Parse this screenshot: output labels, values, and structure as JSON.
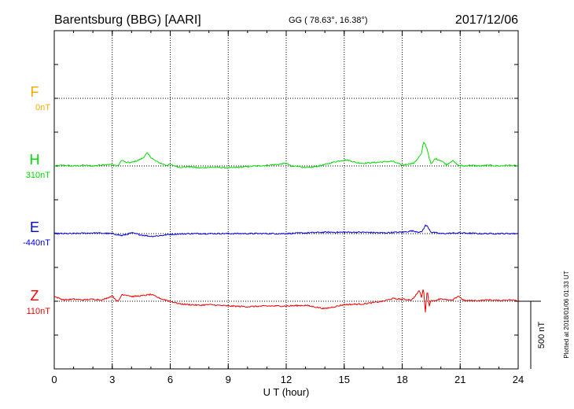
{
  "header": {
    "station": "Barentsburg (BBG)  [AARI]",
    "coords": "GG ( 78.63°,  16.38°)",
    "date": "2017/12/06"
  },
  "side_note": "Plotted at 2018/01/06 01:33 UT",
  "scale_label": "500 nT",
  "colors": {
    "F": "#ffa500",
    "H": "#00dd00",
    "E": "#0000dd",
    "Z": "#ee0000",
    "grid": "#000000"
  },
  "chart_data": {
    "type": "line",
    "title": "Barentsburg (BBG)  [AARI]",
    "xlabel": "U T (hour)",
    "ylabel": "",
    "xlim": [
      0,
      24
    ],
    "x_ticks": [
      "0",
      "3",
      "6",
      "9",
      "12",
      "15",
      "18",
      "21",
      "24"
    ],
    "grid": true,
    "units_per_trace_step_nT": 500,
    "series": [
      {
        "name": "F",
        "baseline_label": "0nT",
        "values": []
      },
      {
        "name": "H",
        "baseline_label": "310nT",
        "x": [
          0,
          0.5,
          1,
          1.5,
          2,
          2.5,
          3,
          3.3,
          3.5,
          3.7,
          4,
          4.3,
          4.6,
          4.8,
          5,
          5.2,
          5.5,
          5.8,
          6,
          6.5,
          7,
          7.5,
          8,
          8.5,
          9,
          9.5,
          10,
          10.5,
          11,
          11.5,
          12,
          12.3,
          12.6,
          13,
          13.5,
          14,
          14.5,
          15,
          15.3,
          15.6,
          16,
          16.5,
          17,
          17.5,
          18,
          18.3,
          18.6,
          19,
          19.1,
          19.2,
          19.3,
          19.4,
          19.5,
          19.7,
          20,
          20.3,
          20.6,
          20.9,
          21.2,
          21.5,
          22,
          22.5,
          23,
          23.5,
          24
        ],
        "values": [
          0,
          5,
          0,
          5,
          0,
          10,
          10,
          0,
          45,
          25,
          25,
          40,
          60,
          95,
          65,
          40,
          20,
          5,
          10,
          -10,
          -5,
          -15,
          -10,
          -10,
          -15,
          -10,
          -5,
          0,
          5,
          10,
          20,
          -5,
          0,
          -15,
          -5,
          10,
          30,
          45,
          40,
          25,
          20,
          25,
          30,
          35,
          5,
          15,
          20,
          90,
          175,
          160,
          120,
          60,
          10,
          55,
          40,
          10,
          40,
          5,
          0,
          5,
          0,
          5,
          0,
          5,
          0
        ]
      },
      {
        "name": "E",
        "baseline_label": "-440nT",
        "x": [
          0,
          1,
          2,
          3,
          3.5,
          4,
          4.5,
          5,
          5.5,
          6,
          7,
          8,
          9,
          10,
          11,
          12,
          13,
          14,
          15,
          16,
          17,
          17.7,
          18,
          18.5,
          19,
          19.2,
          19.3,
          19.5,
          20,
          21,
          22,
          23,
          24
        ],
        "values": [
          0,
          0,
          5,
          0,
          -15,
          5,
          -10,
          -20,
          -15,
          -5,
          0,
          0,
          0,
          0,
          0,
          0,
          5,
          10,
          10,
          10,
          5,
          10,
          10,
          20,
          10,
          60,
          55,
          10,
          0,
          5,
          0,
          0,
          0
        ]
      },
      {
        "name": "Z",
        "baseline_label": "110nT",
        "x": [
          0,
          0.5,
          1,
          1.5,
          2,
          2.5,
          3,
          3.3,
          3.5,
          3.8,
          4,
          4.5,
          5,
          5.5,
          6,
          6.5,
          7,
          7.5,
          8,
          9,
          10,
          11,
          12,
          13,
          14,
          14.5,
          15,
          16,
          17,
          17.5,
          18,
          18.5,
          18.9,
          19,
          19.1,
          19.2,
          19.3,
          19.4,
          19.5,
          19.6,
          19.8,
          20,
          20.3,
          20.6,
          20.9,
          21.2,
          21.5,
          22,
          22.5,
          23,
          23.5,
          24
        ],
        "values": [
          35,
          10,
          15,
          10,
          15,
          10,
          40,
          -5,
          50,
          45,
          35,
          40,
          50,
          20,
          0,
          -20,
          -25,
          -30,
          -25,
          -35,
          -40,
          -35,
          -35,
          -30,
          -55,
          -40,
          -25,
          -20,
          0,
          20,
          15,
          10,
          80,
          25,
          100,
          -80,
          95,
          -40,
          15,
          0,
          10,
          20,
          10,
          5,
          40,
          5,
          5,
          5,
          10,
          5,
          10,
          5
        ]
      }
    ]
  }
}
